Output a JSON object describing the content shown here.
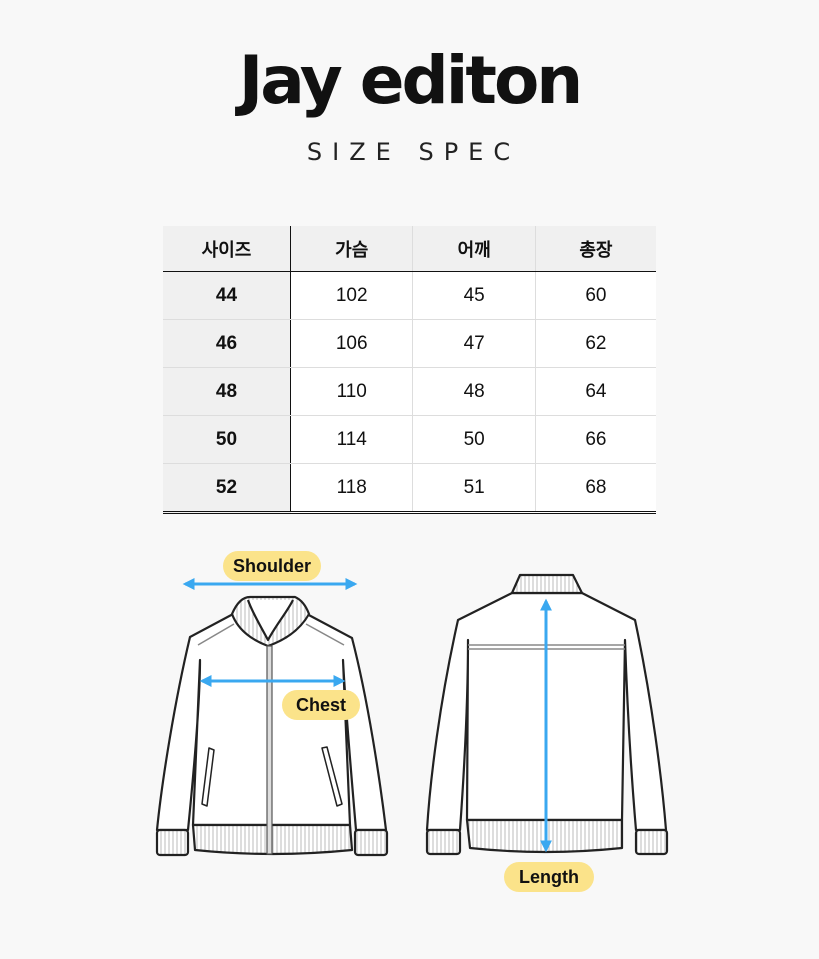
{
  "header": {
    "brand": "Jay editon",
    "subtitle": "SIZE SPEC"
  },
  "table": {
    "columns": [
      "사이즈",
      "가슴",
      "어깨",
      "총장"
    ],
    "rows": [
      [
        "44",
        "102",
        "45",
        "60"
      ],
      [
        "46",
        "106",
        "47",
        "62"
      ],
      [
        "48",
        "110",
        "48",
        "64"
      ],
      [
        "50",
        "114",
        "50",
        "66"
      ],
      [
        "52",
        "118",
        "51",
        "68"
      ]
    ]
  },
  "illustration": {
    "labels": {
      "shoulder": "Shoulder",
      "chest": "Chest",
      "length": "Length"
    },
    "colors": {
      "arrow": "#3aa8f0",
      "label_bg": "#fbe38a",
      "outline": "#222222"
    }
  }
}
